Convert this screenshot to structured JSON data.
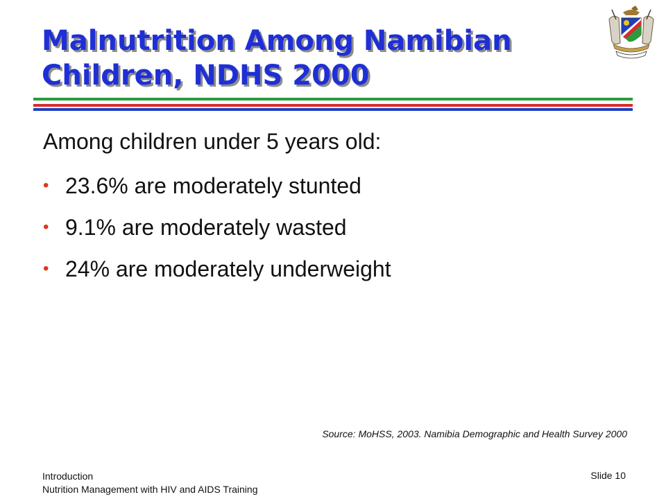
{
  "slide": {
    "title_line1": "Malnutrition Among Namibian",
    "title_line2": "Children, NDHS 2000",
    "intro": "Among children under 5 years old:",
    "bullets": [
      "23.6% are moderately stunted",
      "9.1% are moderately wasted",
      "24% are moderately underweight"
    ],
    "source": "Source: MoHSS, 2003.  Namibia Demographic and Health Survey 2000"
  },
  "footer": {
    "section": "Introduction",
    "course": "Nutrition Management with HIV and AIDS Training",
    "slide_number": "Slide 10"
  },
  "colors": {
    "title": "#1f2fd6",
    "bullet": "#e0341a",
    "stripe_green": "#2e9a3e",
    "stripe_red": "#d92b2b",
    "stripe_blue": "#1f3fbf"
  },
  "icons": {
    "crest": "namibia-coat-of-arms-icon"
  }
}
